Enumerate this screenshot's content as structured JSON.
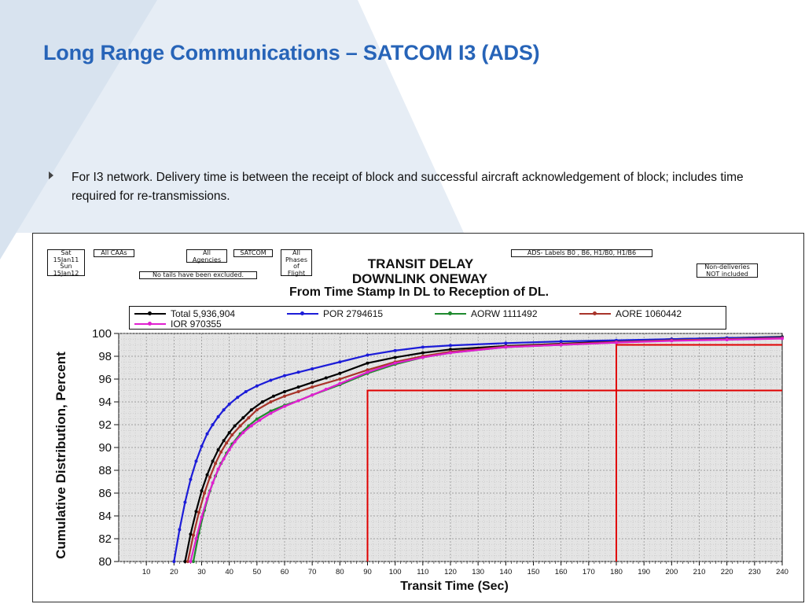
{
  "slide": {
    "title": "Long Range Communications – SATCOM I3 (ADS)",
    "bullet": "For I3 network.  Delivery time is between the receipt of block and successful aircraft  acknowledgement of block; includes time required for re-transmissions."
  },
  "chart_labels": {
    "date_box": [
      "Sat",
      "15Jan11",
      "Sun",
      "15Jan12"
    ],
    "caas": "All CAAs",
    "agencies": [
      "All",
      "Agencies"
    ],
    "satcom": "SATCOM",
    "phases": [
      "All",
      "Phases",
      "of",
      "Flight"
    ],
    "tails": "No tails have been excluded.",
    "ads_labels": "ADS- Labels B0 , B6, H1/B0, H1/B6",
    "nondeliveries": [
      "Non-deliveries",
      "NOT included"
    ],
    "title_line1": "TRANSIT DELAY",
    "title_line2": "DOWNLINK ONEWAY",
    "title_line3": "From Time Stamp In DL to Reception of DL."
  },
  "chart_data": {
    "type": "line",
    "title": "TRANSIT DELAY DOWNLINK ONEWAY From Time Stamp In DL to Reception of DL.",
    "xlabel": "Transit Time (Sec)",
    "ylabel": "Cumulative Distribution, Percent",
    "xlim": [
      0,
      240
    ],
    "ylim": [
      80,
      100
    ],
    "x_ticks": [
      10,
      20,
      30,
      40,
      50,
      60,
      70,
      80,
      90,
      100,
      110,
      120,
      130,
      140,
      150,
      160,
      170,
      180,
      190,
      200,
      210,
      220,
      230,
      240
    ],
    "y_ticks": [
      80,
      82,
      84,
      86,
      88,
      90,
      92,
      94,
      96,
      98,
      100
    ],
    "grid": true,
    "legend": "top",
    "series": [
      {
        "name": "Total  5,936,904",
        "color": "#000000",
        "x": [
          24,
          26,
          28,
          30,
          32,
          34,
          36,
          38,
          40,
          42,
          45,
          48,
          52,
          56,
          60,
          65,
          70,
          75,
          80,
          90,
          100,
          110,
          120,
          140,
          160,
          180,
          200,
          220,
          240
        ],
        "y": [
          80.0,
          82.4,
          84.4,
          86.2,
          87.6,
          88.8,
          89.8,
          90.6,
          91.3,
          91.9,
          92.6,
          93.3,
          94.0,
          94.5,
          94.9,
          95.3,
          95.7,
          96.1,
          96.5,
          97.4,
          97.9,
          98.3,
          98.6,
          98.9,
          99.1,
          99.3,
          99.5,
          99.6,
          99.7
        ]
      },
      {
        "name": "POR 2794615",
        "color": "#1c1cd8",
        "x": [
          20,
          22,
          24,
          26,
          28,
          30,
          32,
          34,
          36,
          38,
          40,
          43,
          46,
          50,
          55,
          60,
          65,
          70,
          80,
          90,
          100,
          110,
          120,
          140,
          160,
          180,
          200,
          220,
          240
        ],
        "y": [
          80.0,
          82.8,
          85.2,
          87.2,
          88.8,
          90.1,
          91.2,
          92.0,
          92.7,
          93.3,
          93.8,
          94.4,
          94.9,
          95.4,
          95.9,
          96.3,
          96.6,
          96.9,
          97.5,
          98.1,
          98.5,
          98.8,
          98.95,
          99.15,
          99.3,
          99.4,
          99.5,
          99.6,
          99.65
        ]
      },
      {
        "name": "AORW 1111492",
        "color": "#1e8a2e",
        "x": [
          27,
          29,
          31,
          33,
          35,
          37,
          39,
          41,
          44,
          47,
          50,
          55,
          60,
          65,
          70,
          80,
          90,
          100,
          110,
          120,
          140,
          160,
          180,
          200,
          220,
          240
        ],
        "y": [
          80.0,
          82.5,
          84.5,
          86.2,
          87.5,
          88.6,
          89.5,
          90.3,
          91.2,
          91.9,
          92.5,
          93.2,
          93.7,
          94.1,
          94.6,
          95.5,
          96.5,
          97.3,
          97.9,
          98.3,
          98.8,
          99.0,
          99.2,
          99.4,
          99.5,
          99.6
        ]
      },
      {
        "name": "AORE 1060442",
        "color": "#a8342a",
        "x": [
          25,
          27,
          29,
          31,
          33,
          35,
          37,
          39,
          41,
          44,
          47,
          50,
          55,
          60,
          65,
          70,
          80,
          90,
          100,
          110,
          120,
          140,
          160,
          180,
          200,
          220,
          240
        ],
        "y": [
          80.0,
          82.3,
          84.3,
          86.0,
          87.4,
          88.6,
          89.6,
          90.4,
          91.1,
          91.9,
          92.6,
          93.3,
          94.0,
          94.5,
          94.9,
          95.3,
          96.0,
          96.8,
          97.5,
          98.0,
          98.4,
          98.85,
          99.05,
          99.25,
          99.4,
          99.5,
          99.6
        ]
      },
      {
        "name": "IOR 970355",
        "color": "#e020d0",
        "x": [
          26,
          28,
          30,
          32,
          34,
          36,
          38,
          40,
          42,
          45,
          48,
          51,
          55,
          60,
          65,
          70,
          75,
          80,
          90,
          100,
          110,
          120,
          140,
          160,
          180,
          200,
          220,
          240
        ],
        "y": [
          80.0,
          82.0,
          83.9,
          85.5,
          86.9,
          88.1,
          89.0,
          89.8,
          90.5,
          91.3,
          91.9,
          92.4,
          93.0,
          93.6,
          94.1,
          94.6,
          95.1,
          95.6,
          96.6,
          97.4,
          97.9,
          98.3,
          98.8,
          99.0,
          99.2,
          99.35,
          99.45,
          99.55
        ]
      }
    ],
    "reference_lines": [
      {
        "color": "#e00000",
        "x": [
          90,
          90,
          240
        ],
        "y": [
          80,
          95,
          95
        ]
      },
      {
        "color": "#e00000",
        "x": [
          180,
          180,
          240
        ],
        "y": [
          80,
          99,
          99
        ]
      }
    ]
  },
  "colors": {
    "title": "#2764b8",
    "background_band": "#e6edf5",
    "plot_background": "#e4e4e4",
    "reference": "#e00000"
  }
}
